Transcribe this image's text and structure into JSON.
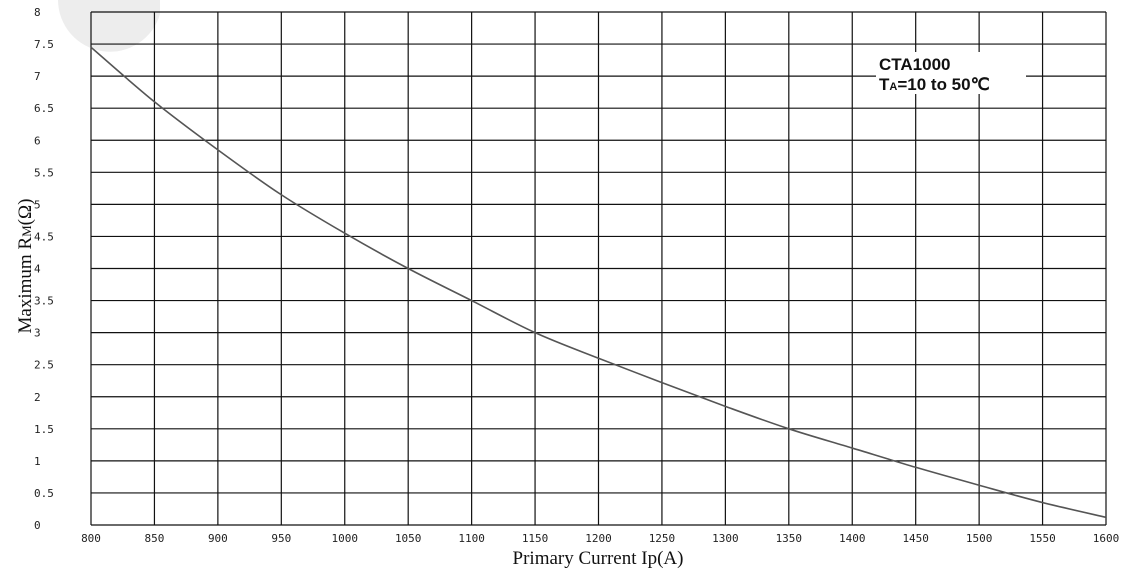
{
  "chart_data": {
    "type": "line",
    "xlabel": "Primary Current Ip(A)",
    "ylabel_main": "Maximum R",
    "ylabel_sub": "M",
    "ylabel_tail": "(Ω)",
    "xlim": [
      800,
      1600
    ],
    "ylim": [
      0,
      8
    ],
    "x_ticks": [
      800,
      850,
      900,
      950,
      1000,
      1050,
      1100,
      1150,
      1200,
      1250,
      1300,
      1350,
      1400,
      1450,
      1500,
      1550,
      1600
    ],
    "y_ticks": [
      0,
      0.5,
      1,
      1.5,
      2,
      2.5,
      3,
      3.5,
      4,
      4.5,
      5,
      5.5,
      6,
      6.5,
      7,
      7.5,
      8
    ],
    "y_tick_labels": [
      "0",
      "0.5",
      "1",
      "1.5",
      "2",
      "2.5",
      "3",
      "3.5",
      "4",
      "4.5",
      "5",
      "5.5",
      "6",
      "6.5",
      "7",
      "7.5",
      "8"
    ],
    "grid": true,
    "series": [
      {
        "x": [
          800,
          850,
          900,
          950,
          1000,
          1050,
          1100,
          1150,
          1200,
          1250,
          1300,
          1350,
          1400,
          1450,
          1500,
          1550,
          1600
        ],
        "y": [
          7.45,
          6.6,
          5.85,
          5.15,
          4.55,
          4.0,
          3.5,
          3.0,
          2.6,
          2.22,
          1.85,
          1.5,
          1.2,
          0.9,
          0.62,
          0.35,
          0.12
        ]
      }
    ],
    "annotation": {
      "line1": "CTA1000",
      "line2_main": "T",
      "line2_sub": "A",
      "line2_tail": "=10 to 50℃"
    }
  },
  "colors": {
    "grid": "#111111",
    "curve": "#555555",
    "background": "#ffffff"
  }
}
